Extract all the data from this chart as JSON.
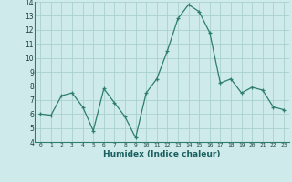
{
  "x": [
    0,
    1,
    2,
    3,
    4,
    5,
    6,
    7,
    8,
    9,
    10,
    11,
    12,
    13,
    14,
    15,
    16,
    17,
    18,
    19,
    20,
    21,
    22,
    23
  ],
  "y": [
    6.0,
    5.9,
    7.3,
    7.5,
    6.5,
    4.8,
    7.8,
    6.8,
    5.8,
    4.3,
    7.5,
    8.5,
    10.5,
    12.8,
    13.8,
    13.3,
    11.8,
    8.2,
    8.5,
    7.5,
    7.9,
    7.7,
    6.5,
    6.3
  ],
  "xlabel": "Humidex (Indice chaleur)",
  "ylim": [
    4,
    14
  ],
  "xlim": [
    -0.5,
    23.5
  ],
  "yticks": [
    4,
    5,
    6,
    7,
    8,
    9,
    10,
    11,
    12,
    13,
    14
  ],
  "xticks": [
    0,
    1,
    2,
    3,
    4,
    5,
    6,
    7,
    8,
    9,
    10,
    11,
    12,
    13,
    14,
    15,
    16,
    17,
    18,
    19,
    20,
    21,
    22,
    23
  ],
  "line_color": "#2e7d6e",
  "marker_color": "#2e7d6e",
  "bg_color": "#ceeaea",
  "grid_color": "#a8d0d0",
  "xlabel_color": "#1a5f5f",
  "tick_label_color": "#1a4040"
}
